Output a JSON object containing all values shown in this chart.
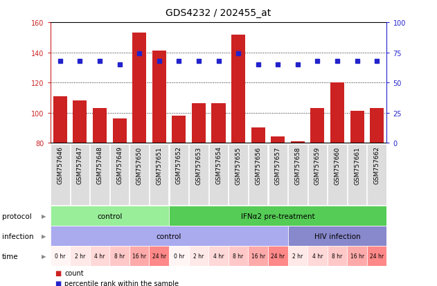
{
  "title": "GDS4232 / 202455_at",
  "samples": [
    "GSM757646",
    "GSM757647",
    "GSM757648",
    "GSM757649",
    "GSM757650",
    "GSM757651",
    "GSM757652",
    "GSM757653",
    "GSM757654",
    "GSM757655",
    "GSM757656",
    "GSM757657",
    "GSM757658",
    "GSM757659",
    "GSM757660",
    "GSM757661",
    "GSM757662"
  ],
  "counts": [
    111,
    108,
    103,
    96,
    153,
    141,
    98,
    106,
    106,
    152,
    90,
    84,
    81,
    103,
    120,
    101,
    103
  ],
  "percentiles": [
    68,
    68,
    68,
    65,
    74,
    68,
    68,
    68,
    68,
    74,
    65,
    65,
    65,
    68,
    68,
    68,
    68
  ],
  "ylim_left": [
    80,
    160
  ],
  "ylim_right": [
    0,
    100
  ],
  "yticks_left": [
    80,
    100,
    120,
    140,
    160
  ],
  "yticks_right": [
    0,
    25,
    50,
    75,
    100
  ],
  "bar_color": "#cc2222",
  "dot_color": "#2222cc",
  "bar_bottom": 80,
  "protocol_groups": [
    {
      "label": "control",
      "start": 0,
      "end": 6,
      "color": "#99ee99"
    },
    {
      "label": "IFNα2 pre-treatment",
      "start": 6,
      "end": 17,
      "color": "#55cc55"
    }
  ],
  "infection_groups": [
    {
      "label": "control",
      "start": 0,
      "end": 12,
      "color": "#aaaaee"
    },
    {
      "label": "HIV infection",
      "start": 12,
      "end": 17,
      "color": "#8888cc"
    }
  ],
  "time_labels": [
    "0 hr",
    "2 hr",
    "4 hr",
    "8 hr",
    "16 hr",
    "24 hr",
    "0 hr",
    "2 hr",
    "4 hr",
    "8 hr",
    "16 hr",
    "24 hr",
    "2 hr",
    "4 hr",
    "8 hr",
    "16 hr",
    "24 hr"
  ],
  "time_colors": [
    "#fff5f5",
    "#ffe8e8",
    "#ffd8d8",
    "#ffc8c8",
    "#ffaaaa",
    "#ff8888",
    "#fff5f5",
    "#ffe8e8",
    "#ffd8d8",
    "#ffc8c8",
    "#ffaaaa",
    "#ff8888",
    "#ffe8e8",
    "#ffd8d8",
    "#ffc8c8",
    "#ffaaaa",
    "#ff8888"
  ],
  "tick_fontsize": 7,
  "label_fontsize": 7,
  "sample_fontsize": 6.5,
  "title_fontsize": 10,
  "row_label_fontsize": 7.5,
  "annotation_fontsize": 7.5
}
